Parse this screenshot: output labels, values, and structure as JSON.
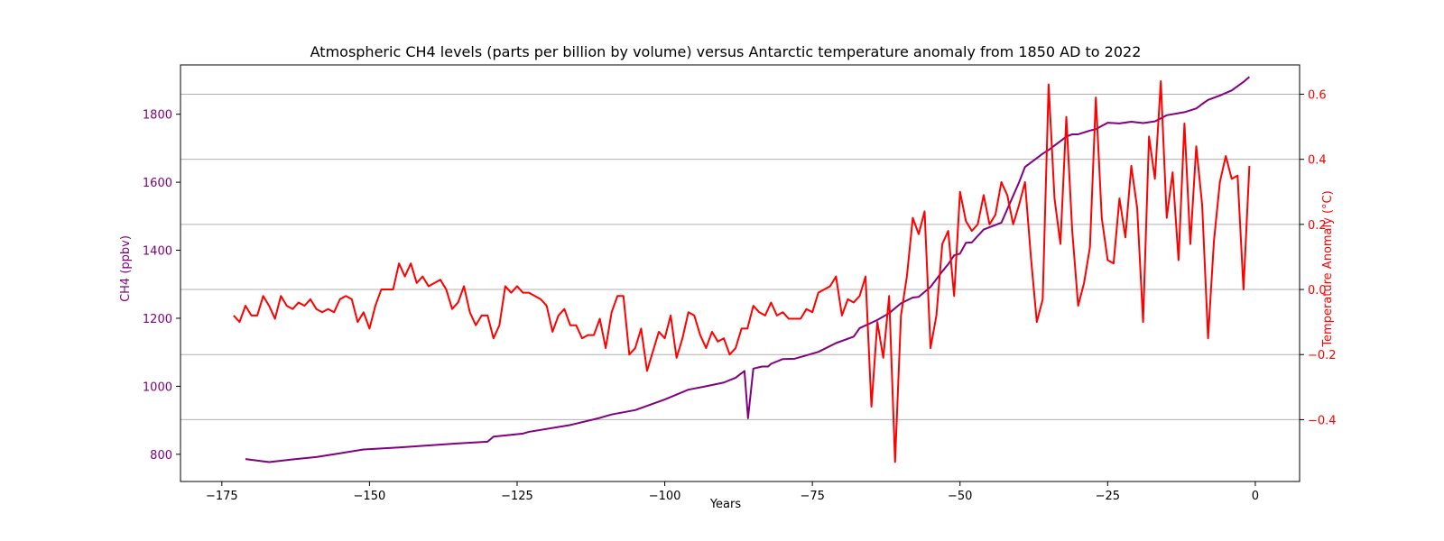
{
  "chart_data": {
    "type": "line",
    "title": "Atmospheric CH4 levels (parts per billion by volume) versus Antarctic temperature anomaly from 1850 AD to 2022",
    "xlabel": "Years",
    "ylabel_left": "CH4 (ppbv)",
    "ylabel_right": "Temperature Anomaly (°C)",
    "xlim": [
      -182,
      7.5
    ],
    "ylim_left": [
      720,
      1945
    ],
    "ylim_right": [
      -0.59,
      0.69
    ],
    "x_ticks": [
      -175,
      -150,
      -125,
      -100,
      -75,
      -50,
      -25,
      0
    ],
    "x_tick_labels": [
      "−175",
      "−150",
      "−125",
      "−100",
      "−75",
      "−50",
      "−25",
      "0"
    ],
    "y_left_ticks": [
      800,
      1000,
      1200,
      1400,
      1600,
      1800
    ],
    "y_left_tick_labels": [
      "800",
      "1000",
      "1200",
      "1400",
      "1600",
      "1800"
    ],
    "y_right_ticks": [
      -0.4,
      -0.2,
      0.0,
      0.2,
      0.4,
      0.6
    ],
    "y_right_tick_labels": [
      "−0.4",
      "−0.2",
      "0.0",
      "0.2",
      "0.4",
      "0.6"
    ],
    "grid": "horizontal lines at right-axis ticks",
    "legend": "none",
    "colors": {
      "ch4": "#800080",
      "temperature": "#ff0000",
      "grid": "#b0b0b0"
    },
    "series": [
      {
        "axis": "left",
        "color": "#800080",
        "points": [
          [
            -171,
            786
          ],
          [
            -167,
            777
          ],
          [
            -163,
            785
          ],
          [
            -159,
            792
          ],
          [
            -155,
            803
          ],
          [
            -151,
            814
          ],
          [
            -145,
            820
          ],
          [
            -140,
            826
          ],
          [
            -135,
            832
          ],
          [
            -130,
            837
          ],
          [
            -129,
            852
          ],
          [
            -124,
            861
          ],
          [
            -123,
            866
          ],
          [
            -116,
            886
          ],
          [
            -111,
            907
          ],
          [
            -109,
            917
          ],
          [
            -105,
            930
          ],
          [
            -100,
            961
          ],
          [
            -96,
            990
          ],
          [
            -93,
            1000
          ],
          [
            -90,
            1011
          ],
          [
            -88,
            1025
          ],
          [
            -86.5,
            1045
          ],
          [
            -85.9,
            906
          ],
          [
            -85,
            1052
          ],
          [
            -83.5,
            1058
          ],
          [
            -82.5,
            1058
          ],
          [
            -82,
            1066
          ],
          [
            -80,
            1080
          ],
          [
            -78,
            1081
          ],
          [
            -76,
            1091
          ],
          [
            -74,
            1101
          ],
          [
            -71,
            1127
          ],
          [
            -68,
            1146
          ],
          [
            -67,
            1171
          ],
          [
            -64,
            1195
          ],
          [
            -62,
            1215
          ],
          [
            -60,
            1244
          ],
          [
            -58,
            1261
          ],
          [
            -57,
            1263
          ],
          [
            -55,
            1292
          ],
          [
            -53,
            1338
          ],
          [
            -52,
            1359
          ],
          [
            -51,
            1385
          ],
          [
            -50,
            1390
          ],
          [
            -49,
            1422
          ],
          [
            -48,
            1423
          ],
          [
            -46,
            1461
          ],
          [
            -43,
            1481
          ],
          [
            -40,
            1600
          ],
          [
            -39,
            1645
          ],
          [
            -36,
            1684
          ],
          [
            -35,
            1695
          ],
          [
            -32,
            1734
          ],
          [
            -31,
            1741
          ],
          [
            -30,
            1741
          ],
          [
            -28,
            1752
          ],
          [
            -27,
            1756
          ],
          [
            -25,
            1775
          ],
          [
            -23,
            1773
          ],
          [
            -21,
            1778
          ],
          [
            -19,
            1774
          ],
          [
            -17,
            1779
          ],
          [
            -15,
            1797
          ],
          [
            -12,
            1806
          ],
          [
            -10,
            1817
          ],
          [
            -9,
            1830
          ],
          [
            -8,
            1842
          ],
          [
            -6,
            1855
          ],
          [
            -4,
            1870
          ],
          [
            -2,
            1895
          ],
          [
            -1,
            1910
          ]
        ]
      },
      {
        "axis": "right",
        "color": "#ff0000",
        "points": [
          [
            -173,
            -0.08
          ],
          [
            -172,
            -0.1
          ],
          [
            -171,
            -0.05
          ],
          [
            -170,
            -0.08
          ],
          [
            -169,
            -0.08
          ],
          [
            -168,
            -0.02
          ],
          [
            -167,
            -0.05
          ],
          [
            -166,
            -0.09
          ],
          [
            -165,
            -0.02
          ],
          [
            -164,
            -0.05
          ],
          [
            -163,
            -0.06
          ],
          [
            -162,
            -0.04
          ],
          [
            -161,
            -0.05
          ],
          [
            -160,
            -0.03
          ],
          [
            -159,
            -0.06
          ],
          [
            -158,
            -0.07
          ],
          [
            -157,
            -0.06
          ],
          [
            -156,
            -0.07
          ],
          [
            -155,
            -0.03
          ],
          [
            -154,
            -0.02
          ],
          [
            -153,
            -0.03
          ],
          [
            -152,
            -0.1
          ],
          [
            -151,
            -0.07
          ],
          [
            -150,
            -0.12
          ],
          [
            -149,
            -0.05
          ],
          [
            -148,
            0.0
          ],
          [
            -147,
            0.0
          ],
          [
            -146,
            0.0
          ],
          [
            -145,
            0.08
          ],
          [
            -144,
            0.04
          ],
          [
            -143,
            0.08
          ],
          [
            -142,
            0.02
          ],
          [
            -141,
            0.04
          ],
          [
            -140,
            0.01
          ],
          [
            -139,
            0.02
          ],
          [
            -138,
            0.03
          ],
          [
            -137,
            0.0
          ],
          [
            -136,
            -0.06
          ],
          [
            -135,
            -0.04
          ],
          [
            -134,
            0.01
          ],
          [
            -133,
            -0.07
          ],
          [
            -132,
            -0.11
          ],
          [
            -131,
            -0.08
          ],
          [
            -130,
            -0.08
          ],
          [
            -129,
            -0.15
          ],
          [
            -128,
            -0.11
          ],
          [
            -127,
            0.01
          ],
          [
            -126,
            -0.01
          ],
          [
            -125,
            0.01
          ],
          [
            -124,
            -0.01
          ],
          [
            -123,
            -0.01
          ],
          [
            -122,
            -0.02
          ],
          [
            -121,
            -0.03
          ],
          [
            -120,
            -0.05
          ],
          [
            -119,
            -0.13
          ],
          [
            -118,
            -0.08
          ],
          [
            -117,
            -0.06
          ],
          [
            -116,
            -0.11
          ],
          [
            -115,
            -0.11
          ],
          [
            -114,
            -0.15
          ],
          [
            -113,
            -0.14
          ],
          [
            -112,
            -0.14
          ],
          [
            -111,
            -0.09
          ],
          [
            -110,
            -0.18
          ],
          [
            -109,
            -0.07
          ],
          [
            -108,
            -0.02
          ],
          [
            -107,
            -0.02
          ],
          [
            -106,
            -0.2
          ],
          [
            -105,
            -0.18
          ],
          [
            -104,
            -0.12
          ],
          [
            -103,
            -0.25
          ],
          [
            -102,
            -0.19
          ],
          [
            -101,
            -0.13
          ],
          [
            -100,
            -0.15
          ],
          [
            -99,
            -0.08
          ],
          [
            -98,
            -0.21
          ],
          [
            -97,
            -0.15
          ],
          [
            -96,
            -0.07
          ],
          [
            -95,
            -0.08
          ],
          [
            -94,
            -0.14
          ],
          [
            -93,
            -0.18
          ],
          [
            -92,
            -0.13
          ],
          [
            -91,
            -0.16
          ],
          [
            -90,
            -0.15
          ],
          [
            -89,
            -0.2
          ],
          [
            -88,
            -0.18
          ],
          [
            -87,
            -0.12
          ],
          [
            -86,
            -0.12
          ],
          [
            -85,
            -0.05
          ],
          [
            -84,
            -0.07
          ],
          [
            -83,
            -0.08
          ],
          [
            -82,
            -0.04
          ],
          [
            -81,
            -0.08
          ],
          [
            -80,
            -0.07
          ],
          [
            -79,
            -0.09
          ],
          [
            -78,
            -0.09
          ],
          [
            -77,
            -0.09
          ],
          [
            -76,
            -0.06
          ],
          [
            -75,
            -0.07
          ],
          [
            -74,
            -0.01
          ],
          [
            -73,
            0.0
          ],
          [
            -72,
            0.01
          ],
          [
            -71,
            0.04
          ],
          [
            -70,
            -0.08
          ],
          [
            -69,
            -0.03
          ],
          [
            -68,
            -0.04
          ],
          [
            -67,
            -0.02
          ],
          [
            -66,
            0.04
          ],
          [
            -65,
            -0.36
          ],
          [
            -64,
            -0.1
          ],
          [
            -63,
            -0.21
          ],
          [
            -62,
            -0.02
          ],
          [
            -61,
            -0.53
          ],
          [
            -60,
            -0.08
          ],
          [
            -59,
            0.04
          ],
          [
            -58,
            0.22
          ],
          [
            -57,
            0.17
          ],
          [
            -56,
            0.24
          ],
          [
            -55,
            -0.18
          ],
          [
            -54,
            -0.08
          ],
          [
            -53,
            0.14
          ],
          [
            -52,
            0.18
          ],
          [
            -51,
            -0.02
          ],
          [
            -50,
            0.3
          ],
          [
            -49,
            0.21
          ],
          [
            -48,
            0.18
          ],
          [
            -47,
            0.2
          ],
          [
            -46,
            0.29
          ],
          [
            -45,
            0.2
          ],
          [
            -44,
            0.23
          ],
          [
            -43,
            0.33
          ],
          [
            -42,
            0.29
          ],
          [
            -41,
            0.2
          ],
          [
            -40,
            0.26
          ],
          [
            -39,
            0.33
          ],
          [
            -38,
            0.1
          ],
          [
            -37,
            -0.1
          ],
          [
            -36,
            -0.03
          ],
          [
            -35,
            0.63
          ],
          [
            -34,
            0.28
          ],
          [
            -33,
            0.14
          ],
          [
            -32,
            0.53
          ],
          [
            -31,
            0.18
          ],
          [
            -30,
            -0.05
          ],
          [
            -29,
            0.02
          ],
          [
            -28,
            0.13
          ],
          [
            -27,
            0.59
          ],
          [
            -26,
            0.22
          ],
          [
            -25,
            0.09
          ],
          [
            -24,
            0.08
          ],
          [
            -23,
            0.28
          ],
          [
            -22,
            0.16
          ],
          [
            -21,
            0.38
          ],
          [
            -20,
            0.25
          ],
          [
            -19,
            -0.1
          ],
          [
            -18,
            0.47
          ],
          [
            -17,
            0.34
          ],
          [
            -16,
            0.64
          ],
          [
            -15,
            0.22
          ],
          [
            -14,
            0.36
          ],
          [
            -13,
            0.09
          ],
          [
            -12,
            0.51
          ],
          [
            -11,
            0.14
          ],
          [
            -10,
            0.44
          ],
          [
            -9,
            0.26
          ],
          [
            -8,
            -0.15
          ],
          [
            -7,
            0.15
          ],
          [
            -6,
            0.33
          ],
          [
            -5,
            0.41
          ],
          [
            -4,
            0.34
          ],
          [
            -3,
            0.35
          ],
          [
            -2,
            0.0
          ],
          [
            -1,
            0.38
          ]
        ]
      }
    ]
  }
}
